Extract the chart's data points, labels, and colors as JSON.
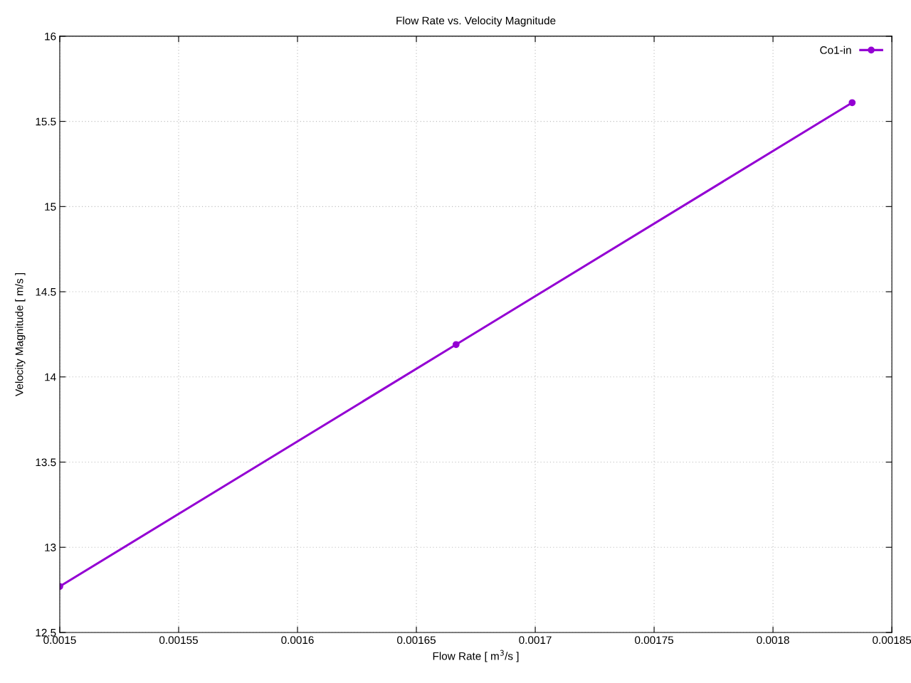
{
  "chart_data": {
    "type": "line",
    "title": "Flow Rate vs. Velocity Magnitude",
    "xlabel": "Flow Rate [ m$^{3}$/s ]",
    "ylabel": "Velocity Magnitude [ m/s ]",
    "x": [
      0.0015,
      0.0016667,
      0.0018333
    ],
    "series": [
      {
        "name": "Co1-in",
        "color": "#9400d3",
        "values": [
          12.77,
          14.19,
          15.61
        ]
      }
    ],
    "xlim": [
      0.0015,
      0.00185
    ],
    "xticks": [
      0.0015,
      0.00155,
      0.0016,
      0.00165,
      0.0017,
      0.00175,
      0.0018,
      0.00185
    ],
    "ylim": [
      12.5,
      16
    ],
    "yticks": [
      12.5,
      13,
      13.5,
      14,
      14.5,
      15,
      15.5,
      16
    ],
    "grid": true,
    "legend": "top right",
    "marker": "circle",
    "line_style": "solid"
  }
}
